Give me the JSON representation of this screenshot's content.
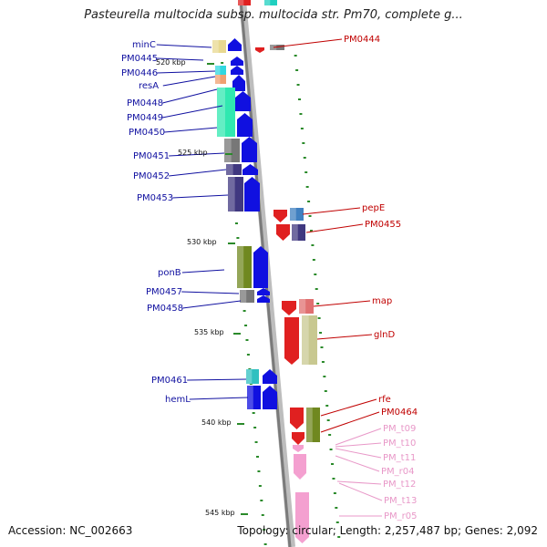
{
  "title": "Pasteurella multocida subsp. multocida str. Pm70, complete g...",
  "footer": {
    "accession": "Accession: NC_002663",
    "summary": "Topology: circular; Length: 2,257,487 bp; Genes: 2,092"
  },
  "colors": {
    "forward_label": "#1010a0",
    "reverse_label": "#c00000",
    "rna_label": "#e898c8",
    "backbone": "#888888",
    "tick_mark": "#2a8a2a"
  },
  "ticks": [
    "520 kbp",
    "525 kbp",
    "530 kbp",
    "535 kbp",
    "540 kbp",
    "545 kbp"
  ],
  "left_labels": [
    "minC",
    "PM0445",
    "PM0446",
    "resA",
    "PM0448",
    "PM0449",
    "PM0450",
    "PM0451",
    "PM0452",
    "PM0453",
    "ponB",
    "PM0457",
    "PM0458",
    "PM0461",
    "hemL"
  ],
  "right_labels": [
    "PM0444",
    "pepE",
    "PM0455",
    "map",
    "glnD",
    "rfe",
    "PM0464"
  ],
  "rna_labels": [
    "PM_t09",
    "PM_t10",
    "PM_t11",
    "PM_r04",
    "PM_t12",
    "PM_t13",
    "PM_r05"
  ]
}
